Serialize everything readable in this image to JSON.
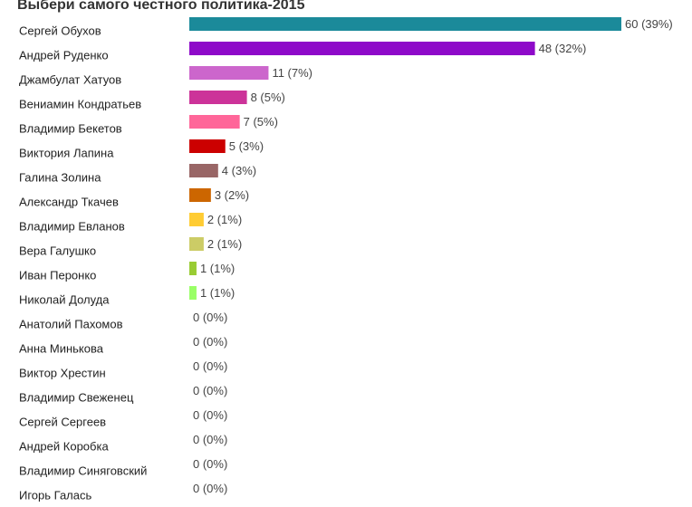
{
  "chart_data": {
    "type": "bar",
    "orientation": "horizontal",
    "title": "Выбери самого честного политика-2015",
    "xlabel": "",
    "ylabel": "",
    "grid": false,
    "legend": "none",
    "xlim": [
      0,
      60
    ],
    "categories": [
      "Сергей Обухов",
      "Андрей Руденко",
      "Джамбулат Хатуов",
      "Вениамин Кондратьев",
      "Владимир Бекетов",
      "Виктория Лапина",
      "Галина Золина",
      "Александр Ткачев",
      "Владимир Евланов",
      "Вера Галушко",
      "Иван Перонко",
      "Николай Долуда",
      "Анатолий Пахомов",
      "Анна Минькова",
      "Виктор Хрестин",
      "Владимир Свеженец",
      "Сергей Сергеев",
      "Андрей Коробка",
      "Владимир Синяговский",
      "Игорь Галась"
    ],
    "values": [
      60,
      48,
      11,
      8,
      7,
      5,
      4,
      3,
      2,
      2,
      1,
      1,
      0,
      0,
      0,
      0,
      0,
      0,
      0,
      0
    ],
    "value_labels": [
      "60 (39%)",
      "48 (32%)",
      "11 (7%)",
      "8 (5%)",
      "7 (5%)",
      "5 (3%)",
      "4 (3%)",
      "3 (2%)",
      "2 (1%)",
      "2 (1%)",
      "1 (1%)",
      "1 (1%)",
      "0 (0%)",
      "0 (0%)",
      "0 (0%)",
      "0 (0%)",
      "0 (0%)",
      "0 (0%)",
      "0 (0%)",
      "0 (0%)"
    ],
    "colors": [
      "#1b8a9a",
      "#8e0ac9",
      "#cc66cc",
      "#cc3399",
      "#ff6699",
      "#cc0000",
      "#996666",
      "#cc6600",
      "#ffcc33",
      "#cccc66",
      "#99cc33",
      "#99ff66",
      "#cccccc",
      "#cccccc",
      "#cccccc",
      "#cccccc",
      "#cccccc",
      "#cccccc",
      "#cccccc",
      "#cccccc"
    ]
  }
}
